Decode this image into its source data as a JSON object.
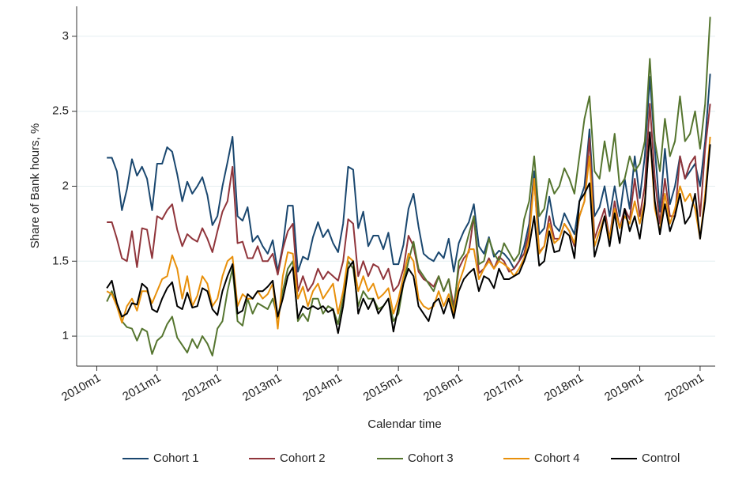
{
  "chart_data": {
    "type": "line",
    "x_label": "Calendar time",
    "y_label": "Share of Bank hours, %",
    "x": [
      602,
      603,
      604,
      605,
      606,
      607,
      608,
      609,
      610,
      611,
      612,
      613,
      614,
      615,
      616,
      617,
      618,
      619,
      620,
      621,
      622,
      623,
      624,
      625,
      626,
      627,
      628,
      629,
      630,
      631,
      632,
      633,
      634,
      635,
      636,
      637,
      638,
      639,
      640,
      641,
      642,
      643,
      644,
      645,
      646,
      647,
      648,
      649,
      650,
      651,
      652,
      653,
      654,
      655,
      656,
      657,
      658,
      659,
      660,
      661,
      662,
      663,
      664,
      665,
      666,
      667,
      668,
      669,
      670,
      671,
      672,
      673,
      674,
      675,
      676,
      677,
      678,
      679,
      680,
      681,
      682,
      683,
      684,
      685,
      686,
      687,
      688,
      689,
      690,
      691,
      692,
      693,
      694,
      695,
      696,
      697,
      698,
      699,
      700,
      701,
      702,
      703,
      704,
      705,
      706,
      707,
      708,
      709,
      710,
      711,
      712,
      713,
      714,
      715,
      716,
      717,
      718,
      719,
      720,
      721,
      722
    ],
    "xlim": [
      596,
      723
    ],
    "xticks": [
      {
        "value": 600,
        "label": "2010m1"
      },
      {
        "value": 612,
        "label": "2011m1"
      },
      {
        "value": 624,
        "label": "2012m1"
      },
      {
        "value": 636,
        "label": "2013m1"
      },
      {
        "value": 648,
        "label": "2014m1"
      },
      {
        "value": 660,
        "label": "2015m1"
      },
      {
        "value": 672,
        "label": "2016m1"
      },
      {
        "value": 684,
        "label": "2017m1"
      },
      {
        "value": 696,
        "label": "2018m1"
      },
      {
        "value": 708,
        "label": "2019m1"
      },
      {
        "value": 720,
        "label": "2020m1"
      }
    ],
    "ylim": [
      0.8,
      3.2
    ],
    "yticks": [
      1,
      1.5,
      2,
      2.5,
      3
    ],
    "grid": true,
    "legend": "bottom",
    "series": [
      {
        "name": "Cohort 1",
        "color": "#1a476f",
        "values": [
          2.19,
          2.19,
          2.1,
          1.84,
          1.98,
          2.18,
          2.07,
          2.13,
          2.05,
          1.84,
          2.15,
          2.15,
          2.26,
          2.23,
          2.08,
          1.9,
          2.03,
          1.95,
          2.0,
          2.06,
          1.94,
          1.74,
          1.8,
          2.0,
          2.16,
          2.33,
          1.8,
          1.77,
          1.86,
          1.63,
          1.67,
          1.6,
          1.55,
          1.64,
          1.43,
          1.6,
          1.87,
          1.87,
          1.43,
          1.53,
          1.51,
          1.66,
          1.76,
          1.66,
          1.71,
          1.62,
          1.56,
          1.75,
          2.13,
          2.11,
          1.72,
          1.83,
          1.6,
          1.67,
          1.67,
          1.58,
          1.69,
          1.48,
          1.48,
          1.61,
          1.85,
          1.95,
          1.73,
          1.55,
          1.52,
          1.5,
          1.56,
          1.52,
          1.65,
          1.43,
          1.62,
          1.7,
          1.76,
          1.88,
          1.6,
          1.55,
          1.66,
          1.53,
          1.57,
          1.55,
          1.51,
          1.45,
          1.5,
          1.6,
          1.75,
          2.1,
          1.68,
          1.72,
          1.93,
          1.74,
          1.7,
          1.82,
          1.75,
          1.68,
          1.9,
          2.0,
          2.38,
          1.8,
          1.86,
          2.0,
          1.8,
          2.0,
          1.8,
          2.05,
          1.85,
          2.2,
          1.92,
          2.2,
          2.73,
          2.25,
          1.83,
          2.25,
          1.88,
          2.0,
          2.2,
          2.05,
          2.1,
          2.15,
          2.0,
          2.3,
          2.75
        ]
      },
      {
        "name": "Cohort 2",
        "color": "#90353b",
        "values": [
          1.76,
          1.76,
          1.65,
          1.52,
          1.5,
          1.7,
          1.46,
          1.72,
          1.71,
          1.52,
          1.8,
          1.78,
          1.84,
          1.88,
          1.71,
          1.6,
          1.68,
          1.65,
          1.63,
          1.72,
          1.65,
          1.56,
          1.7,
          1.83,
          1.9,
          2.13,
          1.62,
          1.63,
          1.52,
          1.52,
          1.6,
          1.5,
          1.5,
          1.55,
          1.41,
          1.58,
          1.7,
          1.75,
          1.3,
          1.4,
          1.3,
          1.35,
          1.45,
          1.38,
          1.43,
          1.4,
          1.37,
          1.5,
          1.78,
          1.75,
          1.4,
          1.5,
          1.4,
          1.48,
          1.46,
          1.38,
          1.45,
          1.3,
          1.34,
          1.45,
          1.67,
          1.6,
          1.43,
          1.38,
          1.36,
          1.33,
          1.4,
          1.3,
          1.38,
          1.2,
          1.45,
          1.52,
          1.56,
          1.8,
          1.42,
          1.45,
          1.52,
          1.45,
          1.53,
          1.5,
          1.43,
          1.45,
          1.5,
          1.55,
          1.7,
          2.05,
          1.56,
          1.6,
          1.8,
          1.65,
          1.65,
          1.75,
          1.7,
          1.6,
          1.8,
          1.9,
          2.32,
          1.65,
          1.75,
          1.85,
          1.65,
          1.9,
          1.72,
          1.85,
          1.78,
          2.05,
          1.8,
          2.0,
          2.55,
          2.05,
          1.75,
          2.05,
          1.8,
          1.8,
          2.2,
          2.05,
          2.15,
          2.2,
          1.8,
          2.25,
          2.55
        ]
      },
      {
        "name": "Cohort 3",
        "color": "#55752f",
        "values": [
          1.23,
          1.3,
          1.2,
          1.1,
          1.06,
          1.05,
          0.97,
          1.05,
          1.03,
          0.88,
          0.97,
          1.0,
          1.08,
          1.13,
          0.99,
          0.94,
          0.89,
          0.98,
          0.92,
          1.0,
          0.95,
          0.87,
          1.05,
          1.1,
          1.3,
          1.45,
          1.1,
          1.07,
          1.25,
          1.15,
          1.22,
          1.2,
          1.18,
          1.25,
          1.12,
          1.3,
          1.45,
          1.5,
          1.1,
          1.15,
          1.1,
          1.25,
          1.25,
          1.15,
          1.2,
          1.18,
          1.08,
          1.25,
          1.5,
          1.45,
          1.2,
          1.3,
          1.25,
          1.25,
          1.18,
          1.2,
          1.25,
          1.1,
          1.15,
          1.35,
          1.5,
          1.63,
          1.45,
          1.4,
          1.35,
          1.3,
          1.4,
          1.3,
          1.38,
          1.15,
          1.5,
          1.55,
          1.68,
          1.8,
          1.48,
          1.5,
          1.65,
          1.55,
          1.5,
          1.62,
          1.56,
          1.5,
          1.55,
          1.78,
          1.9,
          2.2,
          1.8,
          1.85,
          2.05,
          1.95,
          2.0,
          2.12,
          2.05,
          1.95,
          2.2,
          2.45,
          2.6,
          2.1,
          2.05,
          2.3,
          2.1,
          2.35,
          2.0,
          2.05,
          2.2,
          2.1,
          2.15,
          2.3,
          2.85,
          2.3,
          2.1,
          2.45,
          2.2,
          2.3,
          2.6,
          2.3,
          2.35,
          2.5,
          2.25,
          2.55,
          3.13
        ]
      },
      {
        "name": "Cohort 4",
        "color": "#e8900b",
        "values": [
          1.3,
          1.28,
          1.2,
          1.09,
          1.2,
          1.25,
          1.17,
          1.3,
          1.3,
          1.22,
          1.3,
          1.38,
          1.4,
          1.54,
          1.45,
          1.25,
          1.4,
          1.2,
          1.27,
          1.4,
          1.35,
          1.2,
          1.25,
          1.4,
          1.5,
          1.53,
          1.2,
          1.28,
          1.25,
          1.25,
          1.3,
          1.25,
          1.28,
          1.35,
          1.05,
          1.4,
          1.56,
          1.55,
          1.25,
          1.33,
          1.2,
          1.3,
          1.35,
          1.25,
          1.3,
          1.35,
          1.15,
          1.3,
          1.53,
          1.5,
          1.3,
          1.4,
          1.3,
          1.35,
          1.25,
          1.28,
          1.32,
          1.15,
          1.25,
          1.4,
          1.55,
          1.5,
          1.25,
          1.2,
          1.18,
          1.2,
          1.3,
          1.2,
          1.28,
          1.15,
          1.35,
          1.45,
          1.58,
          1.58,
          1.38,
          1.45,
          1.5,
          1.45,
          1.5,
          1.48,
          1.45,
          1.4,
          1.45,
          1.52,
          1.65,
          2.05,
          1.55,
          1.6,
          1.75,
          1.62,
          1.65,
          1.75,
          1.7,
          1.62,
          1.8,
          1.9,
          2.2,
          1.6,
          1.7,
          1.8,
          1.65,
          1.85,
          1.72,
          1.8,
          1.75,
          1.9,
          1.75,
          1.9,
          2.35,
          1.85,
          1.7,
          1.95,
          1.75,
          1.85,
          2.0,
          1.9,
          1.95,
          1.85,
          1.65,
          1.95,
          2.33
        ]
      },
      {
        "name": "Control",
        "color": "#000000",
        "values": [
          1.32,
          1.37,
          1.22,
          1.13,
          1.15,
          1.22,
          1.21,
          1.35,
          1.32,
          1.18,
          1.16,
          1.25,
          1.32,
          1.36,
          1.2,
          1.18,
          1.29,
          1.19,
          1.2,
          1.32,
          1.3,
          1.18,
          1.14,
          1.3,
          1.4,
          1.48,
          1.15,
          1.17,
          1.28,
          1.25,
          1.3,
          1.3,
          1.33,
          1.37,
          1.13,
          1.25,
          1.4,
          1.46,
          1.12,
          1.2,
          1.18,
          1.2,
          1.18,
          1.2,
          1.16,
          1.18,
          1.02,
          1.2,
          1.45,
          1.5,
          1.15,
          1.25,
          1.18,
          1.25,
          1.15,
          1.2,
          1.25,
          1.03,
          1.2,
          1.35,
          1.45,
          1.4,
          1.2,
          1.15,
          1.1,
          1.22,
          1.25,
          1.15,
          1.25,
          1.12,
          1.3,
          1.38,
          1.42,
          1.45,
          1.3,
          1.4,
          1.38,
          1.32,
          1.45,
          1.38,
          1.38,
          1.4,
          1.42,
          1.5,
          1.6,
          1.8,
          1.47,
          1.5,
          1.7,
          1.56,
          1.57,
          1.7,
          1.67,
          1.52,
          1.9,
          1.95,
          2.02,
          1.53,
          1.65,
          1.8,
          1.6,
          1.82,
          1.62,
          1.85,
          1.7,
          1.8,
          1.65,
          1.88,
          2.36,
          1.9,
          1.68,
          1.88,
          1.7,
          1.8,
          1.95,
          1.75,
          1.8,
          1.95,
          1.65,
          1.9,
          2.28
        ]
      }
    ]
  }
}
